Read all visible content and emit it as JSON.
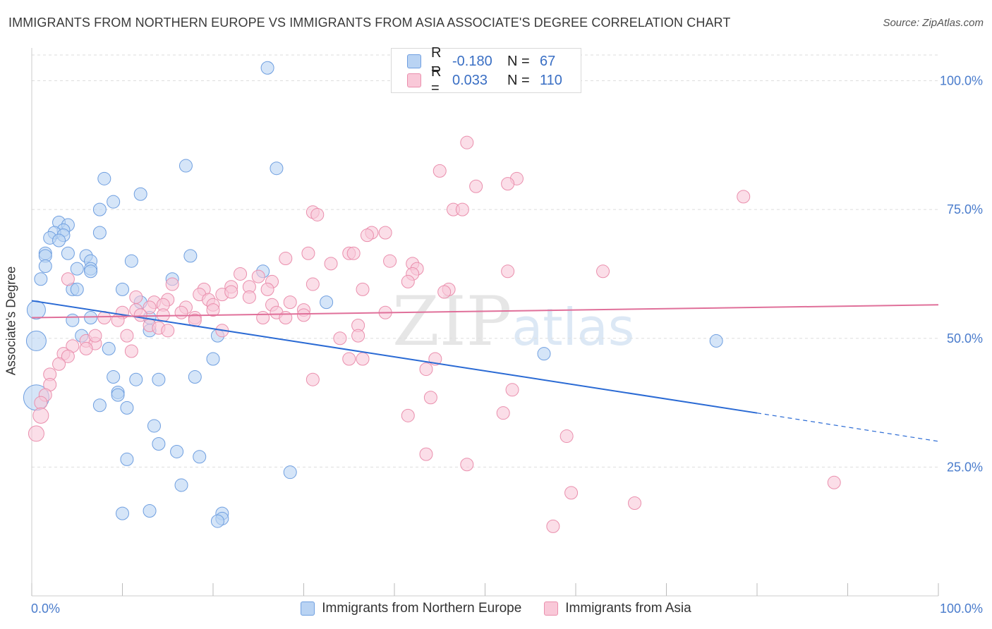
{
  "title": "IMMIGRANTS FROM NORTHERN EUROPE VS IMMIGRANTS FROM ASIA ASSOCIATE'S DEGREE CORRELATION CHART",
  "source": "Source: ZipAtlas.com",
  "watermark": {
    "zip": "ZIP",
    "atlas": "atlas"
  },
  "legend_top": [
    {
      "r_label": "R =",
      "r_value": "-0.180",
      "n_label": "N =",
      "n_value": "67"
    },
    {
      "r_label": "R =",
      "r_value": "0.033",
      "n_label": "N =",
      "n_value": "110"
    }
  ],
  "legend_bottom": [
    {
      "label": "Immigrants from Northern Europe"
    },
    {
      "label": "Immigrants from Asia"
    }
  ],
  "colors": {
    "blue_fill": "#b9d3f3",
    "blue_stroke": "#6f9fe0",
    "blue_line": "#2a6ad4",
    "pink_fill": "#f9c8d8",
    "pink_stroke": "#ea8fad",
    "pink_line": "#e0709a",
    "axis_text": "#4a7ccc",
    "grid": "#dddddd"
  },
  "chart_data": {
    "type": "scatter",
    "title": "IMMIGRANTS FROM NORTHERN EUROPE VS IMMIGRANTS FROM ASIA ASSOCIATE'S DEGREE CORRELATION CHART",
    "xlabel": "",
    "ylabel": "Associate's Degree",
    "xlim": [
      0,
      100
    ],
    "ylim": [
      0,
      105
    ],
    "x_tick_labels": [
      {
        "x": 0,
        "label": "0.0%"
      },
      {
        "x": 100,
        "label": "100.0%"
      }
    ],
    "y_tick_labels": [
      {
        "y": 25,
        "label": "25.0%"
      },
      {
        "y": 50,
        "label": "50.0%"
      },
      {
        "y": 75,
        "label": "75.0%"
      },
      {
        "y": 100,
        "label": "100.0%"
      }
    ],
    "x_minor_ticks": [
      0,
      10,
      20,
      30,
      40,
      50,
      60,
      70,
      80,
      90,
      100
    ],
    "grid": true,
    "series": [
      {
        "name": "Immigrants from Northern Europe",
        "color": "blue",
        "trend": {
          "x": [
            0,
            80
          ],
          "y": [
            57.3,
            35.5
          ],
          "dashed_to": [
            100,
            30.0
          ]
        },
        "points": [
          [
            26,
            102.5
          ],
          [
            17,
            83.5
          ],
          [
            27,
            83
          ],
          [
            8,
            81
          ],
          [
            12,
            78
          ],
          [
            9,
            76.5
          ],
          [
            7.5,
            75
          ],
          [
            3,
            72.5
          ],
          [
            4,
            72
          ],
          [
            3.5,
            71
          ],
          [
            2.5,
            70.5
          ],
          [
            2,
            69.5
          ],
          [
            3.5,
            70
          ],
          [
            7.5,
            70.5
          ],
          [
            3,
            69
          ],
          [
            1.5,
            66.5
          ],
          [
            4,
            66.5
          ],
          [
            6,
            66
          ],
          [
            1.5,
            66
          ],
          [
            17.5,
            66
          ],
          [
            11,
            65
          ],
          [
            6.5,
            65
          ],
          [
            1.5,
            64
          ],
          [
            5,
            63.5
          ],
          [
            6.5,
            63.5
          ],
          [
            25.5,
            63
          ],
          [
            6.5,
            63
          ],
          [
            1,
            61.5
          ],
          [
            15.5,
            61.5
          ],
          [
            10,
            59.5
          ],
          [
            4.5,
            59.5
          ],
          [
            5,
            59.5
          ],
          [
            12,
            57
          ],
          [
            32.5,
            57
          ],
          [
            0.5,
            55.5
          ],
          [
            6.5,
            54
          ],
          [
            13,
            54
          ],
          [
            4.5,
            53.5
          ],
          [
            13,
            51.5
          ],
          [
            20.5,
            50.5
          ],
          [
            5.5,
            50.5
          ],
          [
            0.5,
            49.5
          ],
          [
            75.5,
            49.5
          ],
          [
            8.5,
            48
          ],
          [
            56.5,
            47
          ],
          [
            20,
            46
          ],
          [
            9,
            42.5
          ],
          [
            14,
            42
          ],
          [
            11.5,
            42
          ],
          [
            18,
            42.5
          ],
          [
            9.5,
            39.5
          ],
          [
            9.5,
            39
          ],
          [
            0.5,
            38.5
          ],
          [
            7.5,
            37
          ],
          [
            10.5,
            36.5
          ],
          [
            13.5,
            33
          ],
          [
            14,
            29.5
          ],
          [
            16,
            28
          ],
          [
            18.5,
            27
          ],
          [
            10.5,
            26.5
          ],
          [
            28.5,
            24
          ],
          [
            16.5,
            21.5
          ],
          [
            10,
            16
          ],
          [
            13,
            16.5
          ],
          [
            21,
            16
          ],
          [
            21,
            15
          ],
          [
            20.5,
            14.5
          ]
        ],
        "point_radii_note": "three large markers at x≈0.5 (y≈55.5, 49.5, 38.5)"
      },
      {
        "name": "Immigrants from Asia",
        "color": "pink",
        "trend": {
          "x": [
            0,
            100
          ],
          "y": [
            54.0,
            56.5
          ]
        },
        "points": [
          [
            48,
            88
          ],
          [
            45,
            82.5
          ],
          [
            53.5,
            81
          ],
          [
            52.5,
            80
          ],
          [
            49,
            79.5
          ],
          [
            78.5,
            77.5
          ],
          [
            31,
            74.5
          ],
          [
            31.5,
            74
          ],
          [
            46.5,
            75
          ],
          [
            47.5,
            75
          ],
          [
            37.5,
            70.5
          ],
          [
            39,
            70.5
          ],
          [
            37,
            70
          ],
          [
            30.5,
            66.5
          ],
          [
            35,
            66.5
          ],
          [
            35.5,
            66.5
          ],
          [
            28,
            65.5
          ],
          [
            39.5,
            65
          ],
          [
            42,
            64.5
          ],
          [
            42.5,
            63.5
          ],
          [
            52.5,
            63
          ],
          [
            63,
            63
          ],
          [
            23,
            62.5
          ],
          [
            25,
            62
          ],
          [
            42,
            62.5
          ],
          [
            26.5,
            61
          ],
          [
            41.5,
            61
          ],
          [
            15.5,
            60.5
          ],
          [
            22,
            60
          ],
          [
            24,
            60
          ],
          [
            31,
            60.5
          ],
          [
            36.5,
            59.5
          ],
          [
            19,
            59.5
          ],
          [
            26,
            59.5
          ],
          [
            46,
            59.5
          ],
          [
            45.5,
            59
          ],
          [
            21,
            58.5
          ],
          [
            18.5,
            58.5
          ],
          [
            24,
            58
          ],
          [
            19.5,
            57.5
          ],
          [
            15,
            57.5
          ],
          [
            11.5,
            58
          ],
          [
            13.5,
            57
          ],
          [
            20,
            56.5
          ],
          [
            28.5,
            57
          ],
          [
            13,
            56
          ],
          [
            14.5,
            56.5
          ],
          [
            17,
            56
          ],
          [
            20,
            55.5
          ],
          [
            26.5,
            56.5
          ],
          [
            30,
            55.5
          ],
          [
            27,
            55
          ],
          [
            30,
            54.5
          ],
          [
            10,
            55
          ],
          [
            11.5,
            55.5
          ],
          [
            12,
            54.5
          ],
          [
            14.5,
            54.5
          ],
          [
            16.5,
            55
          ],
          [
            39,
            55
          ],
          [
            18,
            54
          ],
          [
            25.5,
            54
          ],
          [
            28,
            54
          ],
          [
            8,
            54
          ],
          [
            9.5,
            53.5
          ],
          [
            13,
            52.5
          ],
          [
            36,
            52.5
          ],
          [
            14,
            52
          ],
          [
            15,
            51.5
          ],
          [
            21,
            51.5
          ],
          [
            10.5,
            50.5
          ],
          [
            36,
            50.5
          ],
          [
            34,
            50
          ],
          [
            6,
            49.5
          ],
          [
            7,
            49
          ],
          [
            4.5,
            48.5
          ],
          [
            6,
            48
          ],
          [
            11,
            47.5
          ],
          [
            3.5,
            47
          ],
          [
            4,
            46.5
          ],
          [
            44.5,
            46
          ],
          [
            35,
            46
          ],
          [
            36.5,
            46
          ],
          [
            3,
            45
          ],
          [
            43.5,
            44
          ],
          [
            2,
            43
          ],
          [
            31,
            42
          ],
          [
            53,
            40
          ],
          [
            2,
            41
          ],
          [
            1.5,
            39
          ],
          [
            1,
            37.5
          ],
          [
            44,
            38.5
          ],
          [
            52,
            35.5
          ],
          [
            41.5,
            35
          ],
          [
            1,
            35
          ],
          [
            0.5,
            31.5
          ],
          [
            59,
            31
          ],
          [
            43.5,
            27.5
          ],
          [
            48,
            25.5
          ],
          [
            88.5,
            22
          ],
          [
            59.5,
            20
          ],
          [
            66.5,
            18
          ],
          [
            57.5,
            13.5
          ],
          [
            4,
            61.5
          ],
          [
            7,
            50.5
          ],
          [
            33,
            64.5
          ],
          [
            18,
            53.5
          ],
          [
            22,
            59
          ]
        ]
      }
    ]
  }
}
